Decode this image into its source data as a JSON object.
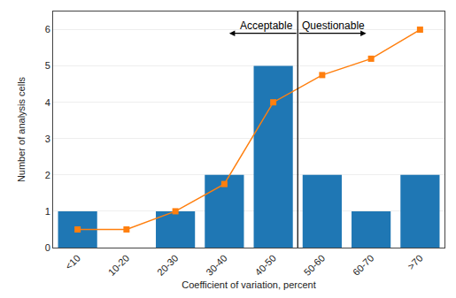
{
  "chart_data": {
    "type": "bar",
    "categories": [
      "<10",
      "10-20",
      "20-30",
      "30-40",
      "40-50",
      "50-60",
      "60-70",
      ">70"
    ],
    "series": [
      {
        "type": "bar",
        "values": [
          1,
          0,
          1,
          2,
          5,
          2,
          1,
          2
        ]
      },
      {
        "type": "line",
        "marker": "square",
        "values": [
          0.5,
          0.5,
          1.0,
          1.75,
          4.0,
          4.75,
          5.2,
          6.0
        ]
      }
    ],
    "xlabel": "Coefficient of variation, percent",
    "ylabel": "Number of analysis cells",
    "ylim": [
      0,
      6.5
    ],
    "yticks": [
      0,
      1,
      2,
      3,
      4,
      5,
      6
    ],
    "grid": true,
    "annotations": [
      "Acceptable",
      "Questionable"
    ]
  }
}
